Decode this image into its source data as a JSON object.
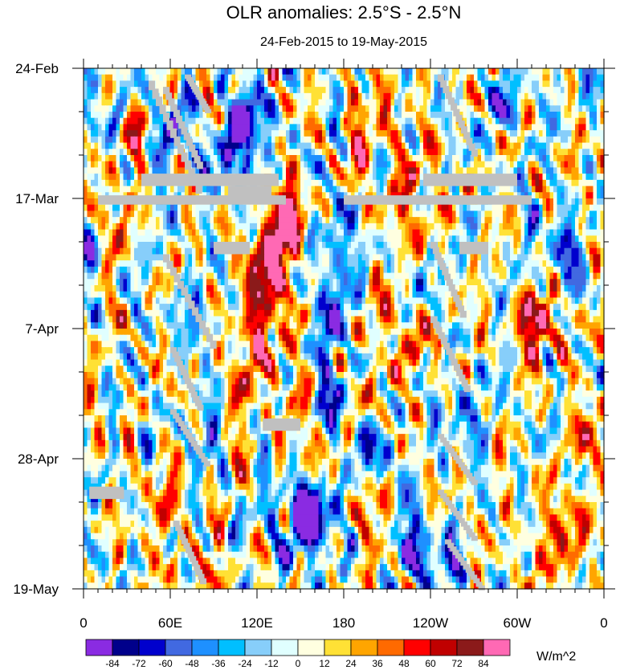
{
  "chart_data": {
    "type": "heatmap",
    "title": "OLR anomalies: 2.5°S - 2.5°N",
    "subtitle": "24-Feb-2015 to 19-May-2015",
    "x_axis": {
      "label": "",
      "range_deg": [
        0,
        360
      ],
      "ticks": [
        {
          "deg": 0,
          "label": "0"
        },
        {
          "deg": 60,
          "label": "60E"
        },
        {
          "deg": 120,
          "label": "120E"
        },
        {
          "deg": 180,
          "label": "180"
        },
        {
          "deg": 240,
          "label": "120W"
        },
        {
          "deg": 300,
          "label": "60W"
        },
        {
          "deg": 360,
          "label": "0"
        }
      ],
      "minor_step_deg": 10
    },
    "y_axis": {
      "label": "",
      "range_days": [
        0,
        84
      ],
      "direction": "time increasing downward",
      "ticks": [
        {
          "day": 0,
          "label": "24-Feb"
        },
        {
          "day": 21,
          "label": "17-Mar"
        },
        {
          "day": 42,
          "label": "7-Apr"
        },
        {
          "day": 63,
          "label": "28-Apr"
        },
        {
          "day": 84,
          "label": "19-May"
        }
      ],
      "minor_step_days": 7
    },
    "colorbar": {
      "unit": "W/m^2",
      "levels": [
        -84,
        -72,
        -60,
        -48,
        -36,
        -24,
        -12,
        0,
        12,
        24,
        36,
        48,
        60,
        72,
        84
      ],
      "colors": [
        "#8a2be2",
        "#00008b",
        "#0000cd",
        "#4169e1",
        "#1e90ff",
        "#00bfff",
        "#87cefa",
        "#e0ffff",
        "#ffffe0",
        "#ffe135",
        "#ffa500",
        "#ff6a00",
        "#ff0000",
        "#c00000",
        "#8b1a1a",
        "#ff69b4"
      ]
    },
    "missing_color": "#c0c0c0",
    "features": [
      {
        "type": "negative",
        "lon": 112,
        "day": 8,
        "amp": -85,
        "rlon": 6,
        "rday": 3
      },
      {
        "type": "negative",
        "lon": 112,
        "day": 12,
        "amp": -55,
        "rlon": 9,
        "rday": 5
      },
      {
        "type": "negative",
        "lon": 90,
        "day": 14,
        "amp": -45,
        "rlon": 8,
        "rday": 4
      },
      {
        "type": "negative",
        "lon": 58,
        "day": 10,
        "amp": -40,
        "rlon": 10,
        "rday": 5
      },
      {
        "type": "negative",
        "lon": 178,
        "day": 28,
        "amp": -70,
        "rlon": 6,
        "rday": 4
      },
      {
        "type": "negative",
        "lon": 172,
        "day": 38,
        "amp": -70,
        "rlon": 6,
        "rday": 4
      },
      {
        "type": "negative",
        "lon": 165,
        "day": 46,
        "amp": -60,
        "rlon": 6,
        "rday": 4
      },
      {
        "type": "negative",
        "lon": 168,
        "day": 56,
        "amp": -55,
        "rlon": 8,
        "rday": 3
      },
      {
        "type": "negative",
        "lon": 150,
        "day": 71,
        "amp": -85,
        "rlon": 10,
        "rday": 3
      },
      {
        "type": "negative",
        "lon": 158,
        "day": 74,
        "amp": -65,
        "rlon": 14,
        "rday": 4
      },
      {
        "type": "negative",
        "lon": 225,
        "day": 76,
        "amp": -80,
        "rlon": 8,
        "rday": 3
      },
      {
        "type": "negative",
        "lon": 245,
        "day": 80,
        "amp": -60,
        "rlon": 10,
        "rday": 3
      },
      {
        "type": "negative",
        "lon": 75,
        "day": 40,
        "amp": -55,
        "rlon": 6,
        "rday": 3
      },
      {
        "type": "negative",
        "lon": 85,
        "day": 58,
        "amp": -50,
        "rlon": 8,
        "rday": 3
      },
      {
        "type": "negative",
        "lon": 40,
        "day": 63,
        "amp": -55,
        "rlon": 6,
        "rday": 3
      },
      {
        "type": "negative",
        "lon": 290,
        "day": 6,
        "amp": -55,
        "rlon": 8,
        "rday": 3
      },
      {
        "type": "negative",
        "lon": 330,
        "day": 30,
        "amp": -50,
        "rlon": 10,
        "rday": 5
      },
      {
        "type": "negative",
        "lon": 235,
        "day": 34,
        "amp": -40,
        "rlon": 12,
        "rday": 4
      },
      {
        "type": "negative",
        "lon": 5,
        "day": 3,
        "amp": -60,
        "rlon": 6,
        "rday": 3
      },
      {
        "type": "negative",
        "lon": 350,
        "day": 3,
        "amp": -50,
        "rlon": 6,
        "rday": 3
      },
      {
        "type": "negative",
        "lon": 5,
        "day": 30,
        "amp": -50,
        "rlon": 6,
        "rday": 3
      },
      {
        "type": "negative",
        "lon": 200,
        "day": 62,
        "amp": -45,
        "rlon": 12,
        "rday": 3
      },
      {
        "type": "negative",
        "lon": 260,
        "day": 55,
        "amp": -40,
        "rlon": 12,
        "rday": 4
      },
      {
        "type": "positive",
        "lon": 142,
        "day": 24,
        "amp": 80,
        "rlon": 6,
        "rday": 4
      },
      {
        "type": "positive",
        "lon": 135,
        "day": 28,
        "amp": 60,
        "rlon": 9,
        "rday": 5
      },
      {
        "type": "positive",
        "lon": 125,
        "day": 33,
        "amp": 55,
        "rlon": 9,
        "rday": 5
      },
      {
        "type": "positive",
        "lon": 118,
        "day": 40,
        "amp": 45,
        "rlon": 8,
        "rday": 5
      },
      {
        "type": "positive",
        "lon": 140,
        "day": 46,
        "amp": 45,
        "rlon": 8,
        "rday": 5
      },
      {
        "type": "positive",
        "lon": 310,
        "day": 40,
        "amp": 60,
        "rlon": 8,
        "rday": 3
      },
      {
        "type": "positive",
        "lon": 320,
        "day": 42,
        "amp": 45,
        "rlon": 10,
        "rday": 4
      },
      {
        "type": "positive",
        "lon": 330,
        "day": 76,
        "amp": 45,
        "rlon": 14,
        "rday": 5
      },
      {
        "type": "positive",
        "lon": 350,
        "day": 60,
        "amp": 40,
        "rlon": 8,
        "rday": 5
      },
      {
        "type": "positive",
        "lon": 80,
        "day": 82,
        "amp": 60,
        "rlon": 6,
        "rday": 3
      },
      {
        "type": "positive",
        "lon": 30,
        "day": 63,
        "amp": 55,
        "rlon": 5,
        "rday": 3
      },
      {
        "type": "positive",
        "lon": 55,
        "day": 70,
        "amp": 45,
        "rlon": 8,
        "rday": 5
      },
      {
        "type": "positive",
        "lon": 15,
        "day": 25,
        "amp": 35,
        "rlon": 8,
        "rday": 5
      },
      {
        "type": "positive",
        "lon": 230,
        "day": 22,
        "amp": 35,
        "rlon": 12,
        "rday": 6
      },
      {
        "type": "positive",
        "lon": 225,
        "day": 42,
        "amp": 30,
        "rlon": 18,
        "rday": 8
      },
      {
        "type": "positive",
        "lon": 200,
        "day": 74,
        "amp": 40,
        "rlon": 10,
        "rday": 4
      },
      {
        "type": "positive",
        "lon": 160,
        "day": 60,
        "amp": 35,
        "rlon": 10,
        "rday": 4
      },
      {
        "type": "positive",
        "lon": 110,
        "day": 52,
        "amp": 40,
        "rlon": 8,
        "rday": 5
      },
      {
        "type": "positive",
        "lon": 360,
        "day": 15,
        "amp": 40,
        "rlon": 6,
        "rday": 6
      },
      {
        "type": "positive",
        "lon": 200,
        "day": 10,
        "amp": 35,
        "rlon": 12,
        "rday": 6
      },
      {
        "type": "positive",
        "lon": 35,
        "day": 12,
        "amp": 40,
        "rlon": 5,
        "rday": 5
      }
    ]
  }
}
